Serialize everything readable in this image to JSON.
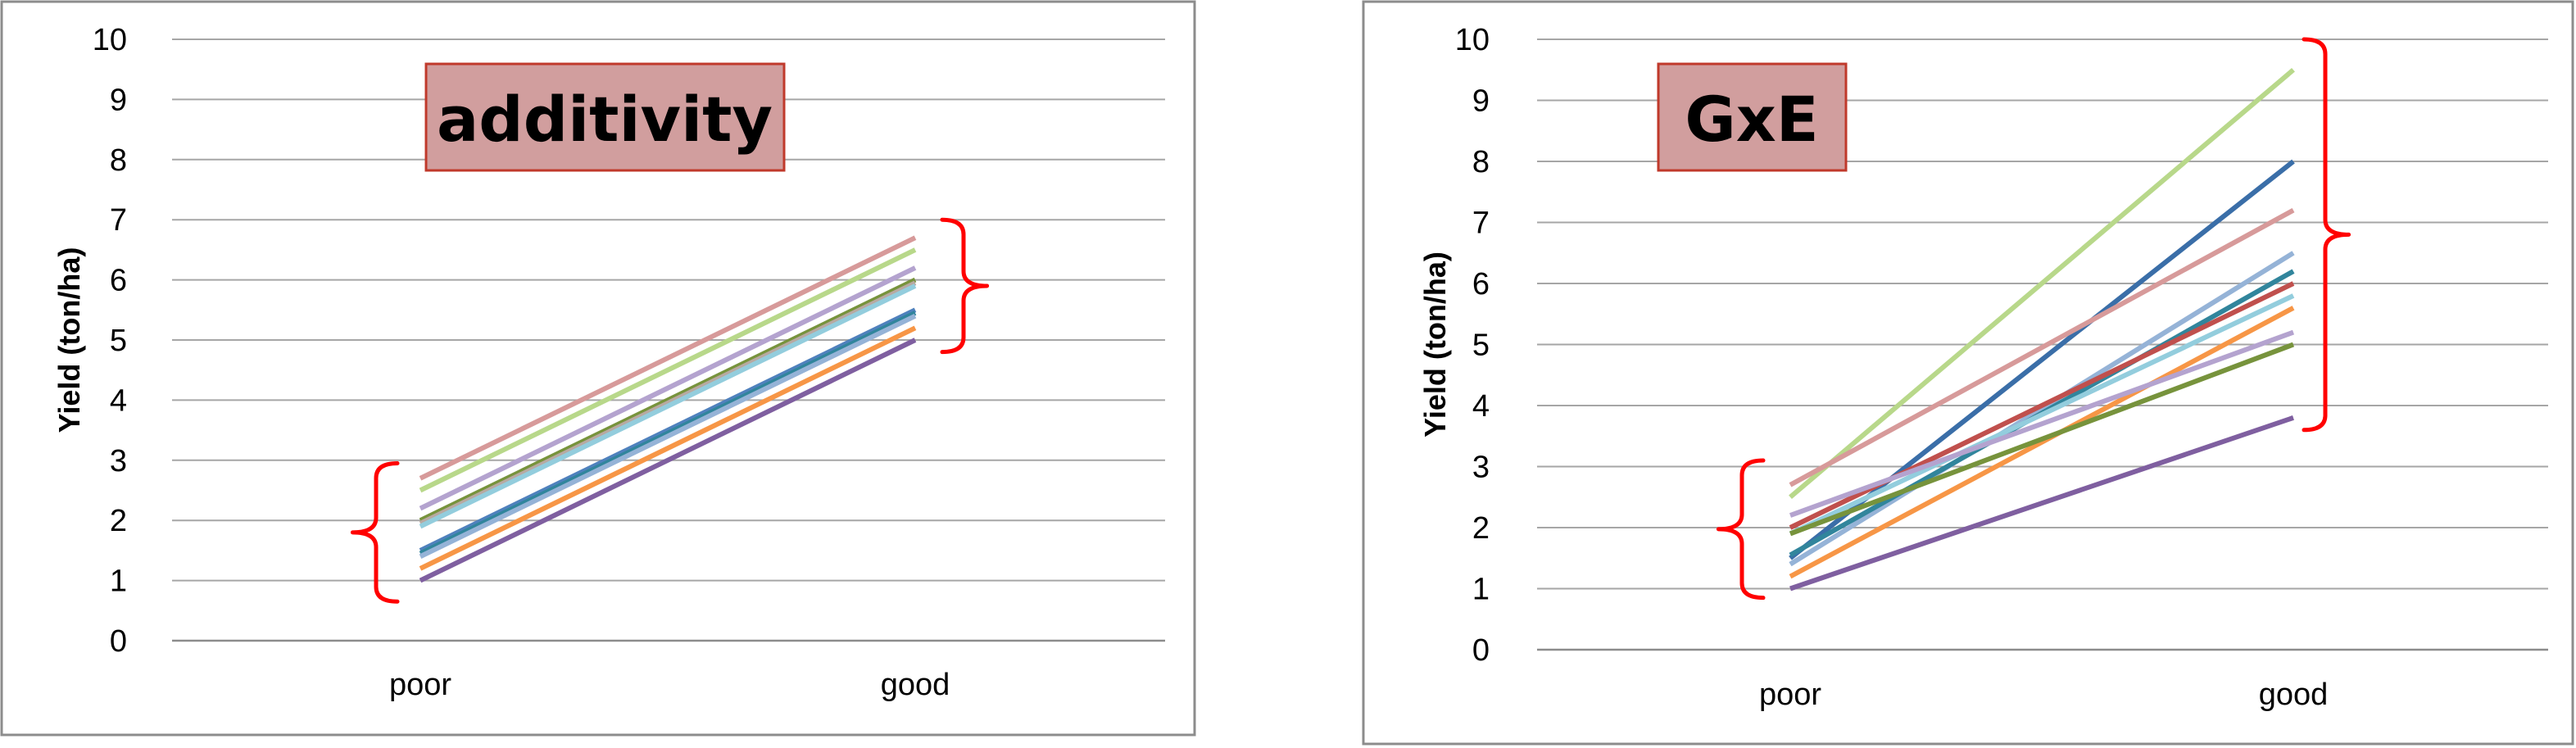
{
  "chart_data": [
    {
      "type": "line",
      "title": "additivity",
      "xlabel": "",
      "ylabel": "Yield (ton/ha)",
      "categories": [
        "poor",
        "good"
      ],
      "yticks": [
        "0",
        "1",
        "2",
        "3",
        "4",
        "5",
        "6",
        "7",
        "8",
        "9",
        "10"
      ],
      "ylim": [
        0,
        10
      ],
      "grid": true,
      "title_box_color": "#d19e9e",
      "title_border_color": "#c0392b",
      "bracket_color": "#ff0000",
      "series": [
        {
          "color": "#d79a9a",
          "values": [
            2.7,
            6.7
          ]
        },
        {
          "color": "#b8d88a",
          "values": [
            2.5,
            6.5
          ]
        },
        {
          "color": "#b4a3cf",
          "values": [
            2.2,
            6.2
          ]
        },
        {
          "color": "#77933c",
          "values": [
            2.0,
            6.0
          ]
        },
        {
          "color": "#b8a9a1",
          "values": [
            1.95,
            5.95
          ]
        },
        {
          "color": "#93cddd",
          "values": [
            1.9,
            5.9
          ]
        },
        {
          "color": "#4f81bd",
          "values": [
            1.5,
            5.5
          ]
        },
        {
          "color": "#31859c",
          "values": [
            1.45,
            5.45
          ]
        },
        {
          "color": "#95b3d7",
          "values": [
            1.4,
            5.4
          ]
        },
        {
          "color": "#f79646",
          "values": [
            1.2,
            5.2
          ]
        },
        {
          "color": "#7f5fa0",
          "values": [
            1.0,
            5.0
          ]
        }
      ],
      "brackets": [
        {
          "x_category": 0,
          "side": "left",
          "range": [
            0.65,
            2.95
          ]
        },
        {
          "x_category": 1,
          "side": "right",
          "range": [
            4.8,
            7.0
          ]
        }
      ]
    },
    {
      "type": "line",
      "title": "GxE",
      "xlabel": "",
      "ylabel": "Yield (ton/ha)",
      "categories": [
        "poor",
        "good"
      ],
      "yticks": [
        "0",
        "1",
        "2",
        "3",
        "4",
        "5",
        "6",
        "7",
        "8",
        "9",
        "10"
      ],
      "ylim": [
        0,
        10
      ],
      "grid": true,
      "title_box_color": "#d19e9e",
      "title_border_color": "#c0392b",
      "bracket_color": "#ff0000",
      "series": [
        {
          "color": "#b8d88a",
          "values": [
            2.5,
            9.5
          ]
        },
        {
          "color": "#3a6ea8",
          "values": [
            1.5,
            8.0
          ]
        },
        {
          "color": "#d79a9a",
          "values": [
            2.7,
            7.2
          ]
        },
        {
          "color": "#95b3d7",
          "values": [
            1.4,
            6.5
          ]
        },
        {
          "color": "#31859c",
          "values": [
            1.55,
            6.2
          ]
        },
        {
          "color": "#c0504d",
          "values": [
            2.0,
            6.0
          ]
        },
        {
          "color": "#93cddd",
          "values": [
            1.9,
            5.8
          ]
        },
        {
          "color": "#f79646",
          "values": [
            1.2,
            5.6
          ]
        },
        {
          "color": "#b4a3cf",
          "values": [
            2.2,
            5.2
          ]
        },
        {
          "color": "#77933c",
          "values": [
            1.9,
            5.0
          ]
        },
        {
          "color": "#7f5fa0",
          "values": [
            1.0,
            3.8
          ]
        }
      ],
      "brackets": [
        {
          "x_category": 0,
          "side": "left",
          "range": [
            0.85,
            3.1
          ]
        },
        {
          "x_category": 1,
          "side": "right",
          "range": [
            3.6,
            10.0
          ]
        }
      ]
    }
  ]
}
